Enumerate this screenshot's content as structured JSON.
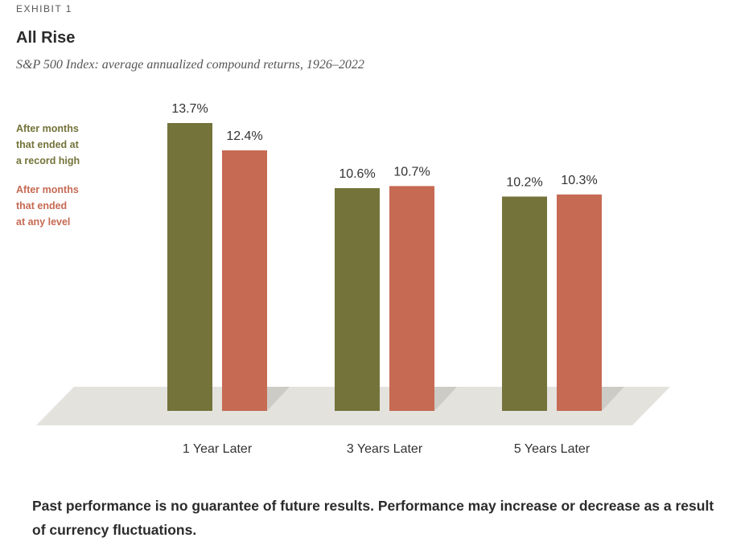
{
  "header": {
    "exhibit": "EXHIBIT 1",
    "title": "All Rise",
    "subtitle": "S&P 500 Index: average annualized compound returns, 1926–2022"
  },
  "chart_data": {
    "type": "bar",
    "categories": [
      "1 Year Later",
      "3 Years Later",
      "5 Years Later"
    ],
    "series": [
      {
        "name": "After months that ended at a record high",
        "legend_lines": [
          "After months",
          "that ended at",
          "a record high"
        ],
        "values": [
          13.7,
          10.6,
          10.2
        ],
        "labels": [
          "13.7%",
          "10.6%",
          "10.2%"
        ],
        "color": "#74733a"
      },
      {
        "name": "After months that ended at any level",
        "legend_lines": [
          "After months",
          "that ended",
          "at any level"
        ],
        "values": [
          12.4,
          10.7,
          10.3
        ],
        "labels": [
          "12.4%",
          "10.7%",
          "10.3%"
        ],
        "color": "#c66a53"
      }
    ],
    "ylim": [
      0,
      13.7
    ],
    "grid": false,
    "legend_position": "left",
    "floor_color": "#e4e2dd",
    "shadow_color": "#cdcbc6"
  },
  "footer": {
    "note": "Past performance is no guarantee of future results. Performance may increase or decrease as a result of currency fluctuations."
  }
}
